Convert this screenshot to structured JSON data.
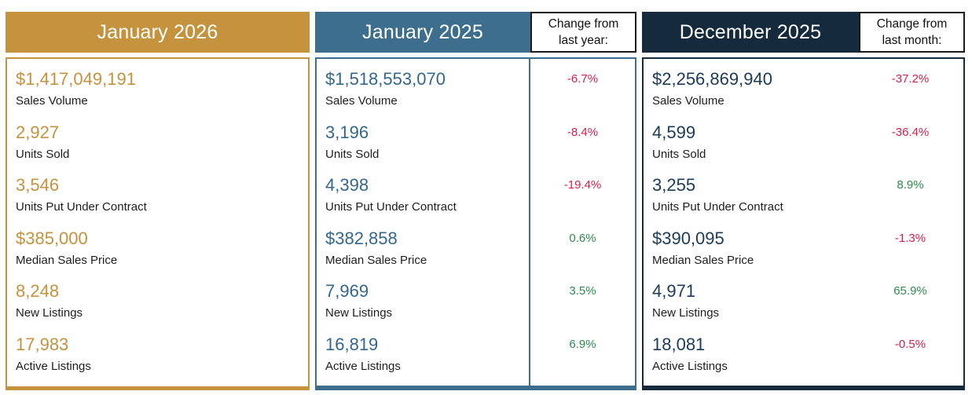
{
  "colors": {
    "gold": "#C5923E",
    "teal": "#3D6E8E",
    "navy": "#152A3D",
    "value_blue": "#33688C",
    "value_navy": "#1B3B59",
    "label": "#1D1D1D",
    "negative": "#D81F4B",
    "positive": "#2E8B50",
    "cell_border": "#1A1A1A"
  },
  "metric_labels": [
    "Sales Volume",
    "Units Sold",
    "Units Put Under Contract",
    "Median Sales Price",
    "New Listings",
    "Active Listings"
  ],
  "panels": [
    {
      "title": "January 2026",
      "values": [
        "$1,417,049,191",
        "2,927",
        "3,546",
        "$385,000",
        "8,248",
        "17,983"
      ]
    },
    {
      "title": "January 2025",
      "change_header": "Change from last year:",
      "values": [
        "$1,518,553,070",
        "3,196",
        "4,398",
        "$382,858",
        "7,969",
        "16,819"
      ],
      "changes": [
        {
          "text": "-6.7%",
          "class": "negative"
        },
        {
          "text": "-8.4%",
          "class": "negative"
        },
        {
          "text": "-19.4%",
          "class": "negative"
        },
        {
          "text": "0.6%",
          "class": "positive"
        },
        {
          "text": "3.5%",
          "class": "positive"
        },
        {
          "text": "6.9%",
          "class": "positive"
        }
      ]
    },
    {
      "title": "December 2025",
      "change_header": "Change from last month:",
      "values": [
        "$2,256,869,940",
        "4,599",
        "3,255",
        "$390,095",
        "4,971",
        "18,081"
      ],
      "changes": [
        {
          "text": "-37.2%",
          "class": "negative"
        },
        {
          "text": "-36.4%",
          "class": "negative"
        },
        {
          "text": "8.9%",
          "class": "positive"
        },
        {
          "text": "-1.3%",
          "class": "negative"
        },
        {
          "text": "65.9%",
          "class": "positive"
        },
        {
          "text": "-0.5%",
          "class": "negative"
        }
      ]
    }
  ],
  "chart_data": {
    "type": "table",
    "title": "Monthly real estate market statistics comparison",
    "row_labels": [
      "Sales Volume",
      "Units Sold",
      "Units Put Under Contract",
      "Median Sales Price",
      "New Listings",
      "Active Listings"
    ],
    "columns": [
      {
        "header": "January 2026",
        "values": [
          "$1,417,049,191",
          "2,927",
          "3,546",
          "$385,000",
          "8,248",
          "17,983"
        ]
      },
      {
        "header": "January 2025",
        "values": [
          "$1,518,553,070",
          "3,196",
          "4,398",
          "$382,858",
          "7,969",
          "16,819"
        ],
        "change_label": "Change from last year:",
        "changes_pct": [
          -6.7,
          -8.4,
          -19.4,
          0.6,
          3.5,
          6.9
        ]
      },
      {
        "header": "December 2025",
        "values": [
          "$2,256,869,940",
          "4,599",
          "3,255",
          "$390,095",
          "4,971",
          "18,081"
        ],
        "change_label": "Change from last month:",
        "changes_pct": [
          -37.2,
          -36.4,
          8.9,
          -1.3,
          65.9,
          -0.5
        ]
      }
    ]
  }
}
